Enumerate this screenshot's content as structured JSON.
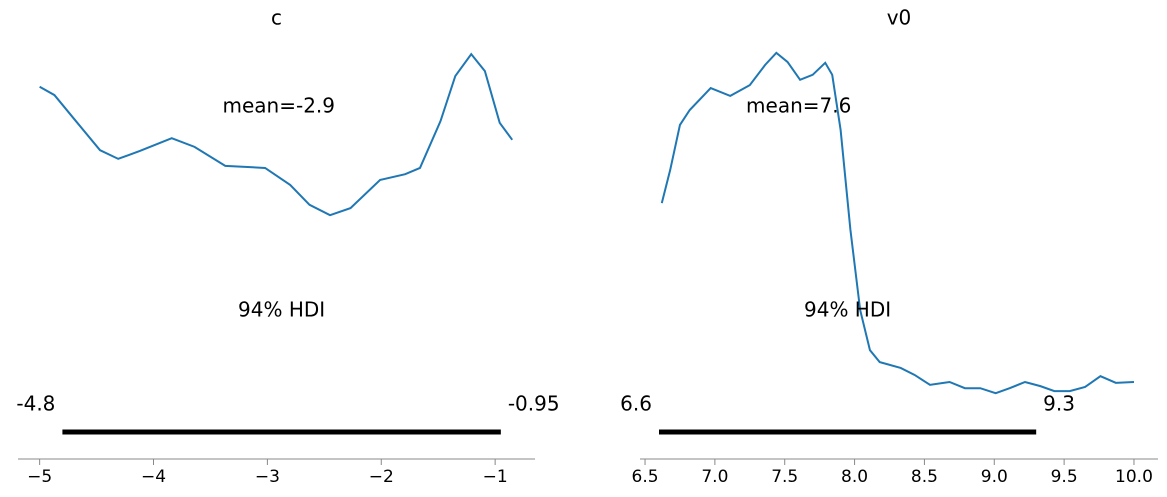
{
  "chart_data": [
    {
      "type": "line",
      "title": "c",
      "color": "#1f77b4",
      "x": [
        -5.0,
        -4.87,
        -4.69,
        -4.47,
        -4.31,
        -4.12,
        -3.84,
        -3.64,
        -3.37,
        -3.02,
        -2.8,
        -2.63,
        -2.45,
        -2.27,
        -2.01,
        -1.79,
        -1.66,
        -1.48,
        -1.35,
        -1.21,
        -1.09,
        -0.96,
        -0.85
      ],
      "values": [
        0.899,
        0.879,
        0.819,
        0.746,
        0.725,
        0.744,
        0.775,
        0.754,
        0.708,
        0.703,
        0.662,
        0.614,
        0.589,
        0.606,
        0.674,
        0.688,
        0.703,
        0.816,
        0.925,
        0.978,
        0.937,
        0.812,
        0.771
      ],
      "xlim": [
        -5.19,
        -0.65
      ],
      "ylim": [
        0,
        1
      ],
      "xticks": [
        {
          "value": -5,
          "label": "−5"
        },
        {
          "value": -4,
          "label": "−4"
        },
        {
          "value": -3,
          "label": "−3"
        },
        {
          "value": -2,
          "label": "−2"
        },
        {
          "value": -1,
          "label": "−1"
        }
      ],
      "mean": -2.9,
      "mean_label": "mean=-2.9",
      "hdi": [
        -4.8,
        -0.95
      ],
      "hdi_label": "94% HDI"
    },
    {
      "type": "line",
      "title": "v0",
      "color": "#1f77b4",
      "x": [
        6.62,
        6.68,
        6.75,
        6.82,
        6.97,
        7.11,
        7.25,
        7.36,
        7.44,
        7.52,
        7.61,
        7.7,
        7.79,
        7.84,
        7.9,
        7.97,
        8.04,
        8.11,
        8.18,
        8.33,
        8.43,
        8.54,
        8.68,
        8.79,
        8.9,
        9.01,
        9.11,
        9.22,
        9.33,
        9.43,
        9.54,
        9.65,
        9.76,
        9.87,
        10.0
      ],
      "values": [
        0.618,
        0.698,
        0.807,
        0.843,
        0.896,
        0.877,
        0.903,
        0.952,
        0.981,
        0.959,
        0.916,
        0.928,
        0.957,
        0.928,
        0.795,
        0.554,
        0.36,
        0.263,
        0.234,
        0.22,
        0.203,
        0.179,
        0.186,
        0.171,
        0.171,
        0.159,
        0.171,
        0.186,
        0.176,
        0.164,
        0.164,
        0.174,
        0.2,
        0.184,
        0.186
      ],
      "xlim": [
        6.464,
        10.172
      ],
      "ylim": [
        0,
        1
      ],
      "xticks": [
        6.5,
        {
          "value": 7,
          "label": "7.0"
        },
        7.5,
        {
          "value": 8,
          "label": "8.0"
        },
        8.5,
        {
          "value": 9,
          "label": "9.0"
        },
        9.5,
        {
          "value": 10,
          "label": "10.0"
        }
      ],
      "mean": 7.6,
      "mean_label": "mean=7.6",
      "hdi": [
        6.6,
        9.3
      ],
      "hdi_label": "94% HDI"
    }
  ]
}
